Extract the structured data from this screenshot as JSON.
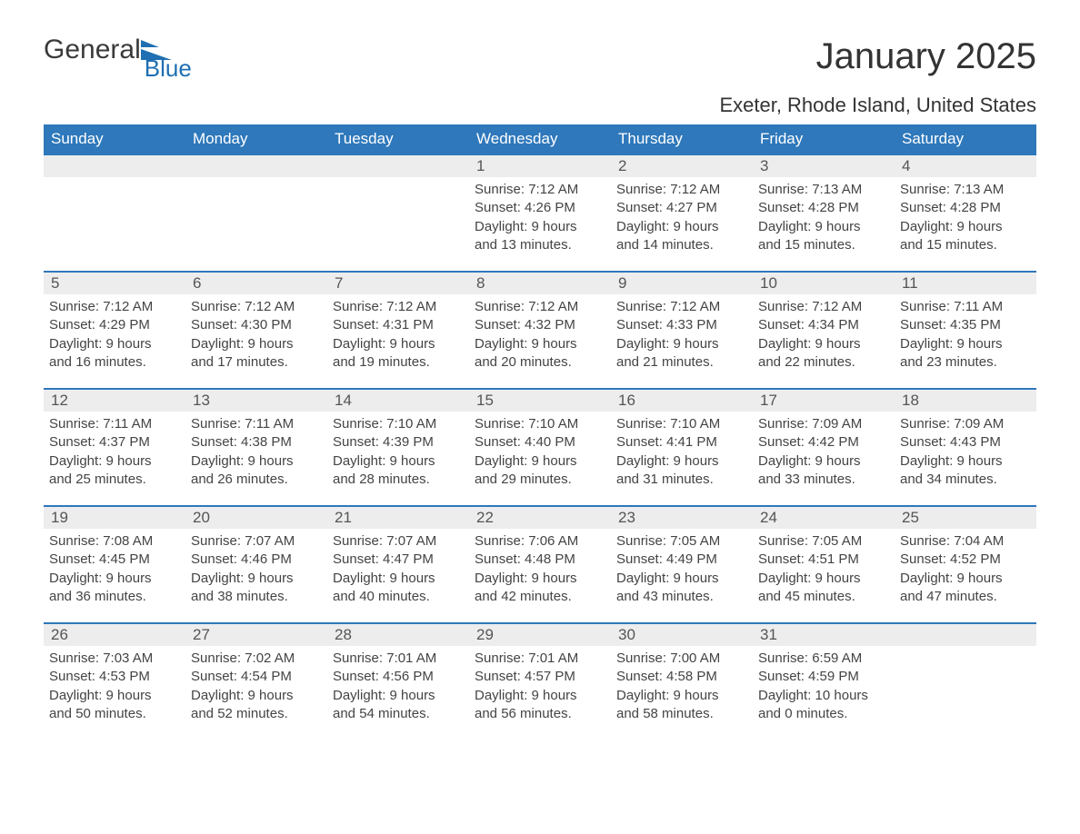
{
  "logo": {
    "word1": "General",
    "word2": "Blue"
  },
  "title": "January 2025",
  "location": "Exeter, Rhode Island, United States",
  "colors": {
    "header_bg": "#2e78bb",
    "header_text": "#ffffff",
    "daynum_bg": "#ededed",
    "border": "#2e78bb",
    "body_text": "#444444",
    "logo_gray": "#3a3a3a",
    "logo_blue": "#1f6fb2"
  },
  "weekdays": [
    "Sunday",
    "Monday",
    "Tuesday",
    "Wednesday",
    "Thursday",
    "Friday",
    "Saturday"
  ],
  "weeks": [
    [
      {
        "day": "",
        "lines": []
      },
      {
        "day": "",
        "lines": []
      },
      {
        "day": "",
        "lines": []
      },
      {
        "day": "1",
        "lines": [
          "Sunrise: 7:12 AM",
          "Sunset: 4:26 PM",
          "Daylight: 9 hours",
          "and 13 minutes."
        ]
      },
      {
        "day": "2",
        "lines": [
          "Sunrise: 7:12 AM",
          "Sunset: 4:27 PM",
          "Daylight: 9 hours",
          "and 14 minutes."
        ]
      },
      {
        "day": "3",
        "lines": [
          "Sunrise: 7:13 AM",
          "Sunset: 4:28 PM",
          "Daylight: 9 hours",
          "and 15 minutes."
        ]
      },
      {
        "day": "4",
        "lines": [
          "Sunrise: 7:13 AM",
          "Sunset: 4:28 PM",
          "Daylight: 9 hours",
          "and 15 minutes."
        ]
      }
    ],
    [
      {
        "day": "5",
        "lines": [
          "Sunrise: 7:12 AM",
          "Sunset: 4:29 PM",
          "Daylight: 9 hours",
          "and 16 minutes."
        ]
      },
      {
        "day": "6",
        "lines": [
          "Sunrise: 7:12 AM",
          "Sunset: 4:30 PM",
          "Daylight: 9 hours",
          "and 17 minutes."
        ]
      },
      {
        "day": "7",
        "lines": [
          "Sunrise: 7:12 AM",
          "Sunset: 4:31 PM",
          "Daylight: 9 hours",
          "and 19 minutes."
        ]
      },
      {
        "day": "8",
        "lines": [
          "Sunrise: 7:12 AM",
          "Sunset: 4:32 PM",
          "Daylight: 9 hours",
          "and 20 minutes."
        ]
      },
      {
        "day": "9",
        "lines": [
          "Sunrise: 7:12 AM",
          "Sunset: 4:33 PM",
          "Daylight: 9 hours",
          "and 21 minutes."
        ]
      },
      {
        "day": "10",
        "lines": [
          "Sunrise: 7:12 AM",
          "Sunset: 4:34 PM",
          "Daylight: 9 hours",
          "and 22 minutes."
        ]
      },
      {
        "day": "11",
        "lines": [
          "Sunrise: 7:11 AM",
          "Sunset: 4:35 PM",
          "Daylight: 9 hours",
          "and 23 minutes."
        ]
      }
    ],
    [
      {
        "day": "12",
        "lines": [
          "Sunrise: 7:11 AM",
          "Sunset: 4:37 PM",
          "Daylight: 9 hours",
          "and 25 minutes."
        ]
      },
      {
        "day": "13",
        "lines": [
          "Sunrise: 7:11 AM",
          "Sunset: 4:38 PM",
          "Daylight: 9 hours",
          "and 26 minutes."
        ]
      },
      {
        "day": "14",
        "lines": [
          "Sunrise: 7:10 AM",
          "Sunset: 4:39 PM",
          "Daylight: 9 hours",
          "and 28 minutes."
        ]
      },
      {
        "day": "15",
        "lines": [
          "Sunrise: 7:10 AM",
          "Sunset: 4:40 PM",
          "Daylight: 9 hours",
          "and 29 minutes."
        ]
      },
      {
        "day": "16",
        "lines": [
          "Sunrise: 7:10 AM",
          "Sunset: 4:41 PM",
          "Daylight: 9 hours",
          "and 31 minutes."
        ]
      },
      {
        "day": "17",
        "lines": [
          "Sunrise: 7:09 AM",
          "Sunset: 4:42 PM",
          "Daylight: 9 hours",
          "and 33 minutes."
        ]
      },
      {
        "day": "18",
        "lines": [
          "Sunrise: 7:09 AM",
          "Sunset: 4:43 PM",
          "Daylight: 9 hours",
          "and 34 minutes."
        ]
      }
    ],
    [
      {
        "day": "19",
        "lines": [
          "Sunrise: 7:08 AM",
          "Sunset: 4:45 PM",
          "Daylight: 9 hours",
          "and 36 minutes."
        ]
      },
      {
        "day": "20",
        "lines": [
          "Sunrise: 7:07 AM",
          "Sunset: 4:46 PM",
          "Daylight: 9 hours",
          "and 38 minutes."
        ]
      },
      {
        "day": "21",
        "lines": [
          "Sunrise: 7:07 AM",
          "Sunset: 4:47 PM",
          "Daylight: 9 hours",
          "and 40 minutes."
        ]
      },
      {
        "day": "22",
        "lines": [
          "Sunrise: 7:06 AM",
          "Sunset: 4:48 PM",
          "Daylight: 9 hours",
          "and 42 minutes."
        ]
      },
      {
        "day": "23",
        "lines": [
          "Sunrise: 7:05 AM",
          "Sunset: 4:49 PM",
          "Daylight: 9 hours",
          "and 43 minutes."
        ]
      },
      {
        "day": "24",
        "lines": [
          "Sunrise: 7:05 AM",
          "Sunset: 4:51 PM",
          "Daylight: 9 hours",
          "and 45 minutes."
        ]
      },
      {
        "day": "25",
        "lines": [
          "Sunrise: 7:04 AM",
          "Sunset: 4:52 PM",
          "Daylight: 9 hours",
          "and 47 minutes."
        ]
      }
    ],
    [
      {
        "day": "26",
        "lines": [
          "Sunrise: 7:03 AM",
          "Sunset: 4:53 PM",
          "Daylight: 9 hours",
          "and 50 minutes."
        ]
      },
      {
        "day": "27",
        "lines": [
          "Sunrise: 7:02 AM",
          "Sunset: 4:54 PM",
          "Daylight: 9 hours",
          "and 52 minutes."
        ]
      },
      {
        "day": "28",
        "lines": [
          "Sunrise: 7:01 AM",
          "Sunset: 4:56 PM",
          "Daylight: 9 hours",
          "and 54 minutes."
        ]
      },
      {
        "day": "29",
        "lines": [
          "Sunrise: 7:01 AM",
          "Sunset: 4:57 PM",
          "Daylight: 9 hours",
          "and 56 minutes."
        ]
      },
      {
        "day": "30",
        "lines": [
          "Sunrise: 7:00 AM",
          "Sunset: 4:58 PM",
          "Daylight: 9 hours",
          "and 58 minutes."
        ]
      },
      {
        "day": "31",
        "lines": [
          "Sunrise: 6:59 AM",
          "Sunset: 4:59 PM",
          "Daylight: 10 hours",
          "and 0 minutes."
        ]
      },
      {
        "day": "",
        "lines": []
      }
    ]
  ]
}
